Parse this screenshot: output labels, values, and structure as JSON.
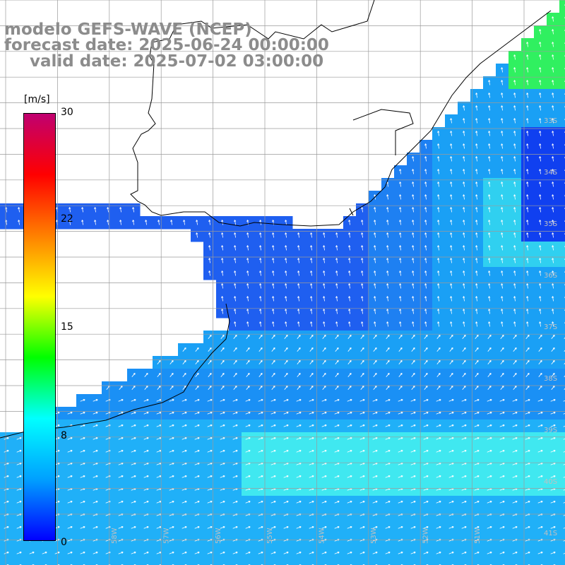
{
  "header": {
    "model": "modelo GEFS-WAVE (NCEP)",
    "forecast": "forecast date: 2025-06-24 00:00:00",
    "valid": "valid date: 2025-07-02 03:00:00"
  },
  "colorbar": {
    "unit": "[m/s]",
    "ticks": [
      "30",
      "22",
      "15",
      "8",
      "0"
    ],
    "range": [
      0,
      30
    ],
    "colors": [
      "#0000ff",
      "#00a0ff",
      "#00ffff",
      "#00ff00",
      "#ffff00",
      "#ff8000",
      "#ff0000",
      "#c00070"
    ]
  },
  "map": {
    "lat_labels": [
      "33S",
      "34S",
      "35S",
      "36S",
      "37S",
      "38S",
      "39S",
      "40S",
      "41S"
    ],
    "lon_labels": [
      "58W",
      "57W",
      "56W",
      "55W",
      "54W",
      "53W",
      "52W",
      "51W"
    ],
    "field": "wind speed at 10 m",
    "land_color": "#ffffff",
    "sea_colors": {
      "low": "#1f5ff0",
      "mid": "#1aa0f5",
      "high": "#40e8f0",
      "peak": "#30f060"
    }
  }
}
